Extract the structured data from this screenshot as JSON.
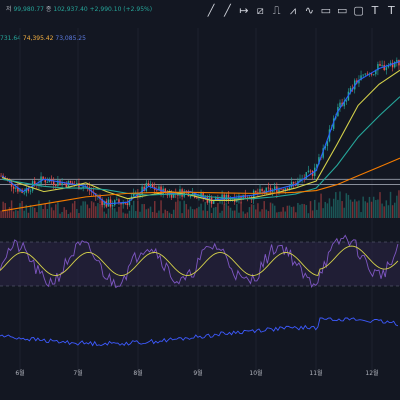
{
  "header": {
    "ohlc_line": [
      {
        "text": "저",
        "color": "#b2b5be"
      },
      {
        "text": "99,980.77",
        "color": "#26a69a"
      },
      {
        "text": "종",
        "color": "#b2b5be"
      },
      {
        "text": "102,937.40",
        "color": "#26a69a"
      },
      {
        "text": "+2,990.10 (+2.95%)",
        "color": "#26a69a"
      }
    ],
    "ma_line": [
      {
        "text": "731.64",
        "color": "#26a69a"
      },
      {
        "text": "74,395.42",
        "color": "#f5b041"
      },
      {
        "text": "73,085.25",
        "color": "#5d7be0"
      }
    ]
  },
  "toolbar": {
    "icons": [
      "brush-icon",
      "line-icon",
      "horizontal-ray-icon",
      "parallel-channel-icon",
      "path-icon",
      "zigzag-icon",
      "wave-icon",
      "long-position-icon",
      "short-position-icon",
      "rectangle-icon",
      "text-icon",
      "text-alt-icon"
    ],
    "glyphs": [
      "╱",
      "╱",
      "↦",
      "⧄",
      "⎍",
      "⩘",
      "∿",
      "▭",
      "▭",
      "▢",
      "T",
      "T"
    ]
  },
  "colors": {
    "background": "#131722",
    "up": "#26a69a",
    "down": "#ef5350",
    "ma_short": "#2962ff",
    "ma_yellow": "#d4d14a",
    "ma_teal": "#26a69a",
    "ma_orange": "#f57c00",
    "oscillator": "#7e57c2",
    "signal": "#d4d14a",
    "lower_indicator": "#3d5afe",
    "text": "#b2b5be",
    "grid": "#1e222d"
  },
  "chart_data": {
    "type": "line",
    "x_labels": [
      "6월",
      "7월",
      "8월",
      "9월",
      "10월",
      "11월",
      "12월"
    ],
    "price_series": [
      {
        "ma": "short",
        "values": [
          67000,
          62500,
          66000,
          65000,
          64000,
          59000,
          59500,
          64000,
          62000,
          62500,
          60000,
          60800,
          61500,
          63000,
          64500,
          68500,
          85000,
          94000,
          97500,
          99500
        ]
      },
      {
        "ma": "yellow",
        "values": [
          66500,
          64500,
          62500,
          63500,
          65000,
          62500,
          60500,
          61500,
          62500,
          61500,
          60000,
          60000,
          60800,
          62000,
          63500,
          65500,
          76000,
          87000,
          93000,
          97000
        ]
      },
      {
        "ma": "teal",
        "values": [
          66000,
          65000,
          64000,
          63500,
          63500,
          63000,
          62000,
          61500,
          61800,
          61700,
          61000,
          60500,
          60500,
          61000,
          61800,
          63500,
          70000,
          78000,
          84000,
          89500
        ]
      },
      {
        "ma": "orange",
        "values": [
          57000,
          58000,
          59000,
          60000,
          61000,
          61500,
          62000,
          62200,
          62300,
          62300,
          62200,
          62100,
          62000,
          62100,
          62300,
          62800,
          64500,
          67000,
          69500,
          72000
        ]
      }
    ],
    "horizontal_levels": [
      66000,
      64500
    ],
    "price_range": [
      55000,
      109000
    ],
    "oscillator": {
      "range": [
        0,
        100
      ],
      "bands": [
        70,
        30
      ]
    },
    "lower_indicator_range": [
      0,
      100
    ]
  }
}
